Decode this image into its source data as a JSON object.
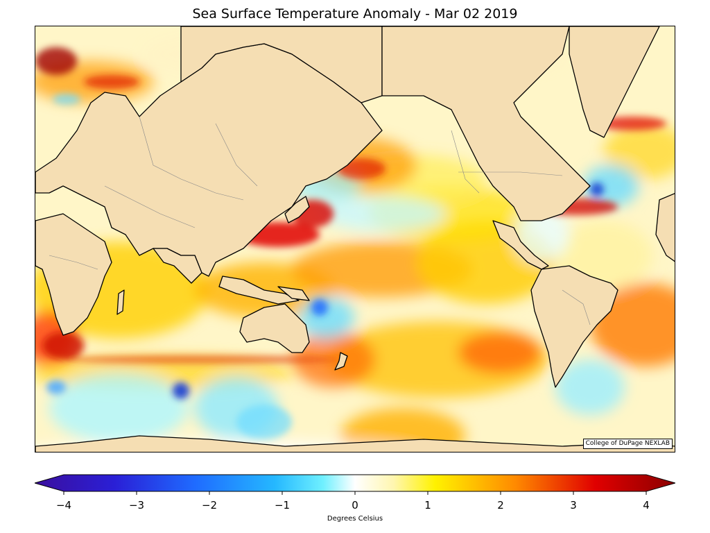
{
  "title": "Sea Surface Temperature Anomaly - Mar 02 2019",
  "credit": "College of DuPage NEXLAB",
  "colorbar": {
    "label": "Degrees Celsius",
    "min": -4,
    "max": 4,
    "ticks": [
      "−4",
      "−3",
      "−2",
      "−1",
      "0",
      "1",
      "2",
      "3",
      "4"
    ],
    "colors": {
      "deep_negative": "#3b0f9e",
      "blue": "#1f6bff",
      "cyan": "#6ff0ff",
      "white": "#ffffff",
      "yellow": "#fff200",
      "orange": "#ff8a00",
      "red": "#e00000",
      "deep_positive": "#8b0000"
    }
  },
  "map": {
    "land_color": "#f5deb3",
    "coastline_color": "#000000",
    "border_color": "#888888"
  }
}
